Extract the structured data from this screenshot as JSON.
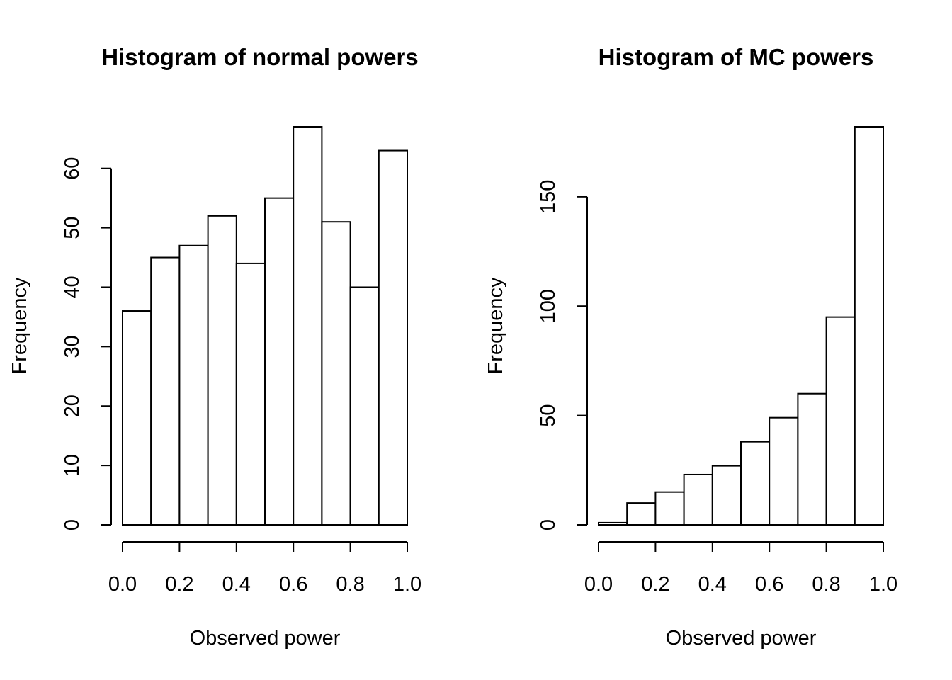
{
  "chart_data": [
    {
      "type": "histogram",
      "title": "Histogram of normal powers",
      "xlabel": "Observed power",
      "ylabel": "Frequency",
      "bins": [
        0,
        0.1,
        0.2,
        0.3,
        0.4,
        0.5,
        0.6,
        0.7,
        0.8,
        0.9,
        1.0
      ],
      "counts": [
        36,
        45,
        47,
        52,
        44,
        55,
        67,
        51,
        40,
        63
      ],
      "color": "#ffffff",
      "xlim": [
        0,
        1
      ],
      "ylim": [
        0,
        67
      ],
      "xticks": [
        {
          "value": 0,
          "label": "0.0"
        },
        0.2,
        0.4,
        0.6,
        0.8,
        {
          "value": 1,
          "label": "1.0"
        }
      ],
      "yticks": [
        0,
        10,
        20,
        30,
        40,
        50,
        60
      ]
    },
    {
      "type": "histogram",
      "title": "Histogram of MC powers",
      "xlabel": "Observed power",
      "ylabel": "Frequency",
      "bins": [
        0,
        0.1,
        0.2,
        0.3,
        0.4,
        0.5,
        0.6,
        0.7,
        0.8,
        0.9,
        1.0
      ],
      "counts": [
        1,
        10,
        15,
        23,
        27,
        38,
        49,
        60,
        95,
        182
      ],
      "color": "#ffffff",
      "xlim": [
        0,
        1
      ],
      "ylim": [
        0,
        182
      ],
      "xticks": [
        {
          "value": 0,
          "label": "0.0"
        },
        0.2,
        0.4,
        0.6,
        0.8,
        {
          "value": 1,
          "label": "1.0"
        }
      ],
      "yticks": [
        0,
        50,
        100,
        150
      ]
    }
  ]
}
